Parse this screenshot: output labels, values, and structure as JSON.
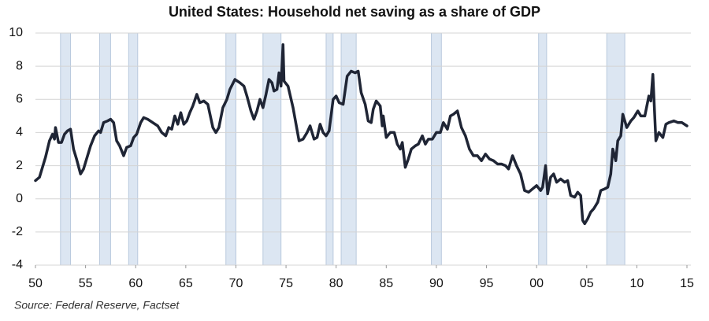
{
  "chart_data": {
    "type": "line",
    "title": "United States: Household net saving as a share of GDP",
    "source": "Source: Federal Reserve, Factset",
    "x": [
      1950.0,
      1950.4,
      1951.0,
      1951.4,
      1951.7,
      1951.9,
      1952.0,
      1952.3,
      1952.6,
      1952.9,
      1953.2,
      1953.5,
      1953.8,
      1954.1,
      1954.5,
      1954.8,
      1955.1,
      1955.5,
      1955.9,
      1956.3,
      1956.5,
      1956.8,
      1957.2,
      1957.5,
      1957.8,
      1958.1,
      1958.4,
      1958.8,
      1959.1,
      1959.5,
      1959.8,
      1960.1,
      1960.5,
      1960.8,
      1961.2,
      1961.7,
      1962.2,
      1962.6,
      1963.0,
      1963.3,
      1963.6,
      1963.9,
      1964.2,
      1964.5,
      1964.8,
      1965.1,
      1965.4,
      1965.7,
      1966.1,
      1966.4,
      1966.8,
      1967.2,
      1967.7,
      1968.0,
      1968.3,
      1968.7,
      1969.1,
      1969.4,
      1969.9,
      1970.4,
      1970.8,
      1971.1,
      1971.5,
      1971.8,
      1972.1,
      1972.4,
      1972.7,
      1973.0,
      1973.3,
      1973.6,
      1973.8,
      1974.1,
      1974.3,
      1974.5,
      1974.7,
      1974.8,
      1975.2,
      1975.7,
      1976.3,
      1976.7,
      1977.1,
      1977.4,
      1977.8,
      1978.1,
      1978.4,
      1978.7,
      1979.0,
      1979.3,
      1979.7,
      1980.0,
      1980.3,
      1980.7,
      1981.1,
      1981.5,
      1981.9,
      1982.2,
      1982.5,
      1982.9,
      1983.2,
      1983.5,
      1983.7,
      1984.0,
      1984.4,
      1984.6,
      1984.7,
      1985.0,
      1985.4,
      1985.8,
      1986.1,
      1986.4,
      1986.6,
      1986.9,
      1987.2,
      1987.5,
      1987.9,
      1988.2,
      1988.6,
      1988.9,
      1989.2,
      1989.6,
      1990.0,
      1990.4,
      1990.7,
      1991.1,
      1991.4,
      1991.7,
      1992.1,
      1992.5,
      1992.9,
      1993.3,
      1993.7,
      1994.1,
      1994.5,
      1994.9,
      1995.3,
      1995.7,
      1996.1,
      1996.5,
      1996.9,
      1997.2,
      1997.6,
      1998.0,
      1998.4,
      1998.8,
      1999.2,
      1999.6,
      2000.0,
      2000.4,
      2000.6,
      2000.9,
      2001.1,
      2001.4,
      2001.7,
      2002.0,
      2002.4,
      2002.8,
      2003.1,
      2003.4,
      2003.8,
      2004.1,
      2004.4,
      2004.6,
      2004.8,
      2005.1,
      2005.4,
      2005.7,
      2006.1,
      2006.4,
      2006.8,
      2007.1,
      2007.4,
      2007.6,
      2007.9,
      2008.1,
      2008.4,
      2008.6,
      2009.0,
      2009.4,
      2009.7,
      2010.1,
      2010.4,
      2010.8,
      2011.2,
      2011.4,
      2011.6,
      2011.9,
      2012.2,
      2012.6,
      2012.9,
      2013.2,
      2013.7,
      2014.1,
      2014.5,
      2015.0
    ],
    "series": [
      {
        "name": "Household net saving",
        "color": "#1f2535",
        "values": [
          1.1,
          1.3,
          2.5,
          3.5,
          3.9,
          3.6,
          4.3,
          3.4,
          3.4,
          3.9,
          4.1,
          4.2,
          3.0,
          2.4,
          1.5,
          1.8,
          2.4,
          3.2,
          3.8,
          4.1,
          4.0,
          4.6,
          4.7,
          4.8,
          4.6,
          3.5,
          3.2,
          2.6,
          3.1,
          3.2,
          3.7,
          3.9,
          4.6,
          4.9,
          4.8,
          4.6,
          4.4,
          4.0,
          3.8,
          4.3,
          4.2,
          5.0,
          4.5,
          5.2,
          4.5,
          4.7,
          5.2,
          5.6,
          6.3,
          5.8,
          5.9,
          5.7,
          4.3,
          4.0,
          4.3,
          5.5,
          6.0,
          6.6,
          7.2,
          7.0,
          6.8,
          6.2,
          5.3,
          4.8,
          5.3,
          6.0,
          5.5,
          6.3,
          7.2,
          7.0,
          6.5,
          6.6,
          7.6,
          6.8,
          9.3,
          7.1,
          6.8,
          5.5,
          3.5,
          3.6,
          4.0,
          4.4,
          3.6,
          3.7,
          4.5,
          4.0,
          3.8,
          4.1,
          6.0,
          6.2,
          5.8,
          5.7,
          7.4,
          7.7,
          7.6,
          7.7,
          6.4,
          5.7,
          4.7,
          4.6,
          5.4,
          5.9,
          5.6,
          4.4,
          5.0,
          3.7,
          4.0,
          4.0,
          3.3,
          3.0,
          3.4,
          1.9,
          2.4,
          3.0,
          3.2,
          3.3,
          3.8,
          3.3,
          3.6,
          3.6,
          4.0,
          4.0,
          4.6,
          4.2,
          5.0,
          5.1,
          5.3,
          4.3,
          3.8,
          3.0,
          2.6,
          2.6,
          2.3,
          2.7,
          2.4,
          2.3,
          2.1,
          2.1,
          2.0,
          1.8,
          2.6,
          2.0,
          1.5,
          0.5,
          0.4,
          0.6,
          0.8,
          0.5,
          0.7,
          2.0,
          0.3,
          1.3,
          1.5,
          1.0,
          1.2,
          1.0,
          1.1,
          0.2,
          0.1,
          0.4,
          0.2,
          -1.3,
          -1.5,
          -1.2,
          -0.8,
          -0.6,
          -0.2,
          0.5,
          0.6,
          0.7,
          1.5,
          3.0,
          2.3,
          3.5,
          3.8,
          5.1,
          4.3,
          4.7,
          4.9,
          5.3,
          5.0,
          5.0,
          6.2,
          5.9,
          7.5,
          3.5,
          4.0,
          3.7,
          4.5,
          4.6,
          4.7,
          4.6,
          4.6,
          4.4
        ]
      }
    ],
    "shaded_periods": [
      [
        1952.5,
        1953.5
      ],
      [
        1956.4,
        1957.5
      ],
      [
        1959.3,
        1960.2
      ],
      [
        1969.0,
        1970.0
      ],
      [
        1972.7,
        1974.5
      ],
      [
        1979.0,
        1979.7
      ],
      [
        1980.5,
        1982.0
      ],
      [
        1989.5,
        1990.5
      ],
      [
        2000.2,
        2001.0
      ],
      [
        2007.0,
        2008.8
      ]
    ],
    "shade_color": "#dce6f2",
    "xlim": [
      1950,
      2015
    ],
    "xticks": [
      {
        "value": 1950,
        "label": "50"
      },
      {
        "value": 1955,
        "label": "55"
      },
      {
        "value": 1960,
        "label": "60"
      },
      {
        "value": 1965,
        "label": "65"
      },
      {
        "value": 1970,
        "label": "70"
      },
      {
        "value": 1975,
        "label": "75"
      },
      {
        "value": 1980,
        "label": "80"
      },
      {
        "value": 1985,
        "label": "85"
      },
      {
        "value": 1990,
        "label": "90"
      },
      {
        "value": 1995,
        "label": "95"
      },
      {
        "value": 2000,
        "label": "00"
      },
      {
        "value": 2005,
        "label": "05"
      },
      {
        "value": 2010,
        "label": "10"
      },
      {
        "value": 2015,
        "label": "15"
      }
    ],
    "ylim": [
      -4,
      10
    ],
    "yticks": [
      10,
      8,
      6,
      4,
      2,
      0,
      -2,
      -4
    ],
    "grid": true
  }
}
